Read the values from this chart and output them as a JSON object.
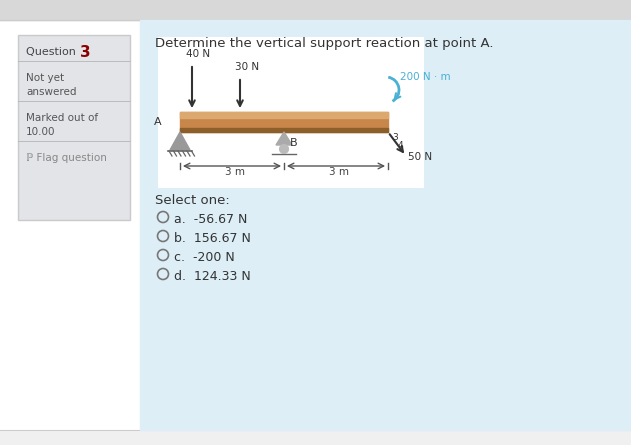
{
  "bg_color": "#ddeef6",
  "page_bg": "#f0f0f0",
  "outer_bg": "#ffffff",
  "sidebar_bg": "#e2e4e8",
  "sidebar_border": "#c8cacc",
  "main_title": "Determine the vertical support reaction at point A.",
  "select_one": "Select one:",
  "options": [
    "a.  -56.67 N",
    "b.  156.67 N",
    "c.  -200 N",
    "d.  124.33 N"
  ],
  "beam_color": "#c8864a",
  "beam_top": "#dba870",
  "beam_bottom": "#8B5e2a",
  "force_color": "#333333",
  "moment_color": "#4ab0d4",
  "support_color": "#999999",
  "dim_color": "#444444",
  "top_bar_color": "#d8d8d8",
  "nav_line_color": "#bbbbbb"
}
